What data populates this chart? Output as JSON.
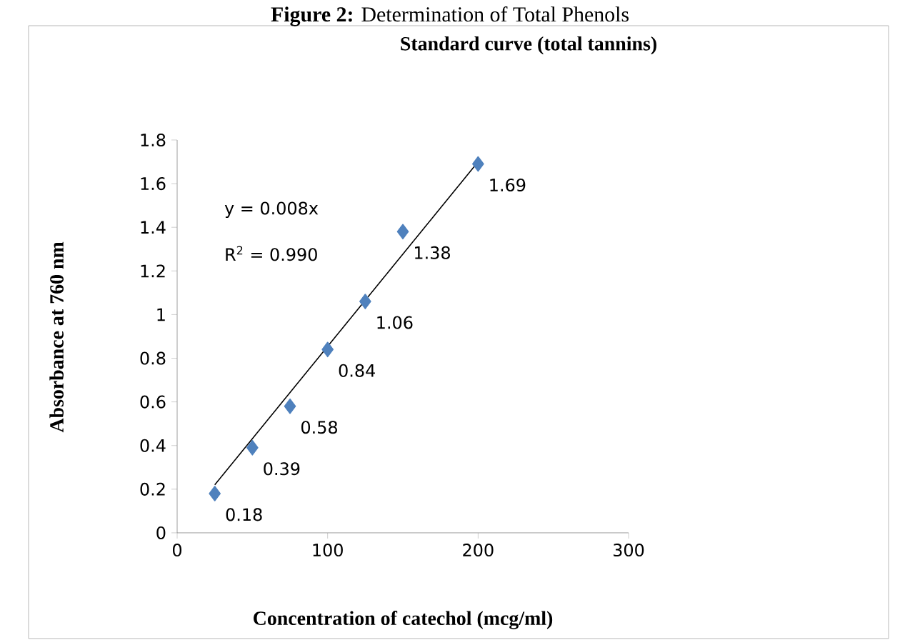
{
  "chart_data": {
    "type": "scatter",
    "title": "Standard curve (total tannins)",
    "xlabel": "Concentration of catechol (mcg/ml)",
    "ylabel": "Absorbance at 760 nm",
    "annotations": [
      "**Figure 2:** Determination of Total Phenols",
      "y = 0.008x",
      "R$^{2}$ = 0.990"
    ],
    "series": [
      {
        "type": "scatter",
        "color": "#4f81bd",
        "marker": "diamond",
        "x": [
          25,
          50,
          75,
          100,
          125,
          150,
          200
        ],
        "values": [
          0.18,
          0.39,
          0.58,
          0.84,
          1.06,
          1.38,
          1.69
        ],
        "value_labels": [
          "0.18",
          "0.39",
          "0.58",
          "0.84",
          "1.06",
          "1.38",
          "1.69"
        ]
      },
      {
        "type": "line",
        "color": "#000000",
        "marker": "none",
        "x": [
          25,
          200
        ],
        "values": [
          0.22,
          1.7
        ]
      }
    ],
    "grid": false,
    "xlim": [
      0,
      300
    ],
    "xticks": [
      0,
      100,
      200,
      300
    ],
    "ylim": [
      0,
      1.8
    ],
    "yticks": [
      0,
      0.2,
      0.4,
      0.6,
      0.8,
      1,
      1.2,
      1.4,
      1.6,
      1.8
    ]
  }
}
